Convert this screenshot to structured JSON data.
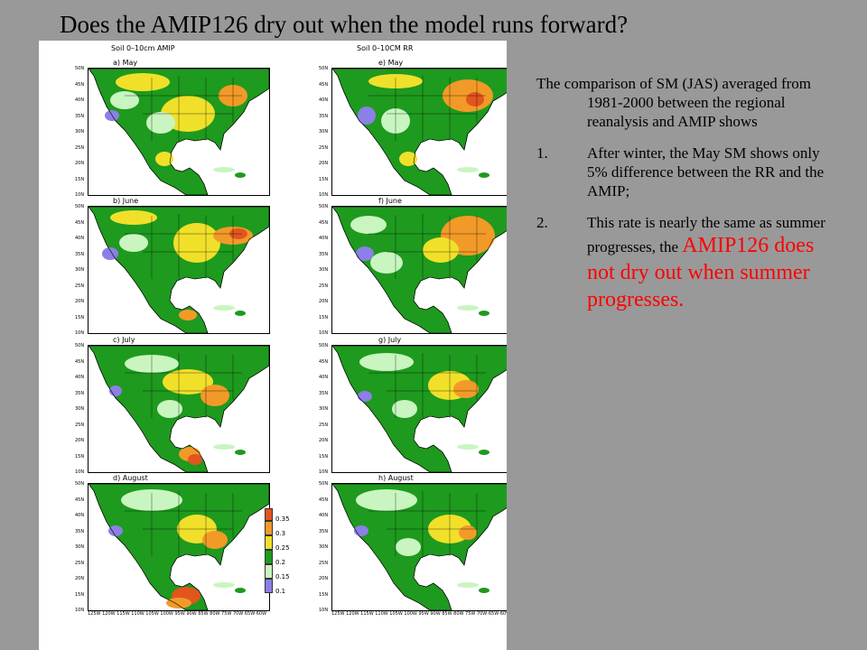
{
  "slide": {
    "title": "Does the AMIP126 dry out when the model runs forward?"
  },
  "figure": {
    "left_column_title": "Soil 0–10cm AMIP",
    "right_column_title": "Soil 0–10CM RR",
    "panels_left": [
      "a) May",
      "b) June",
      "c) July",
      "d) August"
    ],
    "panels_right": [
      "e) May",
      "f) June",
      "g) July",
      "h) August"
    ],
    "lat_ticks": [
      "50N",
      "45N",
      "40N",
      "35N",
      "30N",
      "25N",
      "20N",
      "15N",
      "10N"
    ],
    "lon_ticks": "125W 120W 115W 110W 105W 100W 95W 90W 85W 80W 75W 70W 65W 60W",
    "colorbar": {
      "labels": [
        "0.35",
        "0.3",
        "0.25",
        "0.2",
        "0.15",
        "0.1"
      ],
      "colors": [
        "#e2551e",
        "#f29a28",
        "#f1e02a",
        "#1e9a1e",
        "#c8f5c0",
        "#8c7fe6"
      ]
    }
  },
  "text": {
    "intro": "The comparison of SM (JAS) averaged from 1981-2000 between the regional reanalysis and AMIP shows",
    "items": [
      {
        "num": "1.",
        "text": "After winter, the May SM shows only  5% difference between the RR and the AMIP;"
      },
      {
        "num": "2.",
        "text": "This rate is nearly the same as summer progresses, the ",
        "highlight": "AMIP126 does not dry out when summer progresses."
      }
    ]
  }
}
